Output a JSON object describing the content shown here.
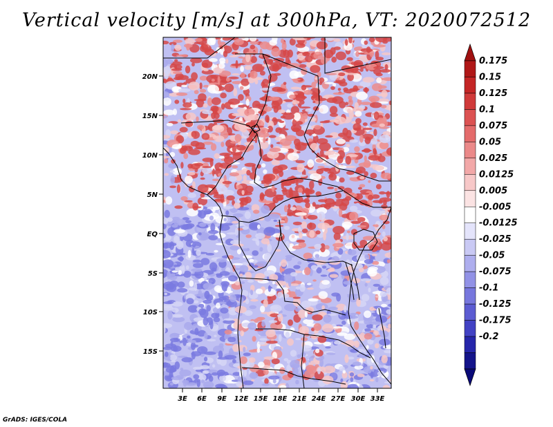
{
  "title": "Vertical velocity [m/s] at 300hPa, VT: 2020072512",
  "footer": "GrADS: IGES/COLA",
  "map": {
    "lon_range": [
      0,
      35
    ],
    "lat_range": [
      -20,
      25
    ],
    "lon_ticks": [
      "3E",
      "6E",
      "9E",
      "12E",
      "15E",
      "18E",
      "21E",
      "24E",
      "27E",
      "30E",
      "33E"
    ],
    "lat_ticks": [
      "20N",
      "15N",
      "10N",
      "5N",
      "EQ",
      "5S",
      "10S",
      "15S"
    ]
  },
  "colorbar": {
    "labels": [
      "0.175",
      "0.15",
      "0.125",
      "0.1",
      "0.075",
      "0.05",
      "0.025",
      "0.0125",
      "0.005",
      "-0.005",
      "-0.0125",
      "-0.025",
      "-0.05",
      "-0.075",
      "-0.1",
      "-0.125",
      "-0.175",
      "-0.2"
    ],
    "colors": [
      "#b01818",
      "#c42626",
      "#d03a3a",
      "#dc5252",
      "#e46b6b",
      "#eb8989",
      "#f2a8a8",
      "#f7c8c8",
      "#fbe3e3",
      "#ffffff",
      "#e4e4fb",
      "#c9c9f4",
      "#aeaeee",
      "#9292e6",
      "#7777dd",
      "#5c5cd2",
      "#4242c4",
      "#2626aa",
      "#14148a"
    ],
    "top_arrow_color": "#a01010",
    "bottom_arrow_color": "#0a0a78"
  },
  "field_colors": {
    "strong_pos": "#d64848",
    "pos": "#ec8c8c",
    "weak_pos": "#f7c8c8",
    "neutral": "#ffffff",
    "weak_neg": "#d6d6f6",
    "neg": "#a9a9ec",
    "strong_neg": "#7a7ae0"
  }
}
